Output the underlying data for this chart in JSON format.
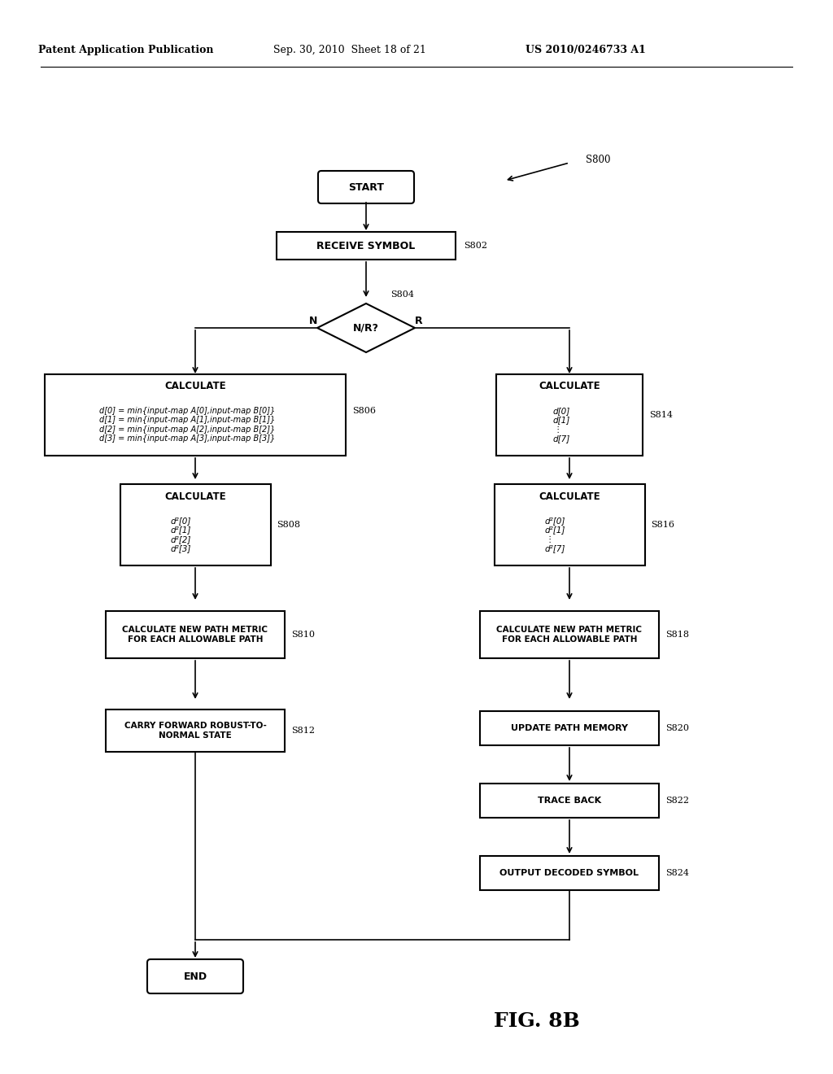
{
  "bg_color": "#ffffff",
  "header_text1": "Patent Application Publication",
  "header_text2": "Sep. 30, 2010  Sheet 18 of 21",
  "header_text3": "US 2010/0246733 A1",
  "fig_label": "FIG. 8B",
  "s800_label": "S800"
}
